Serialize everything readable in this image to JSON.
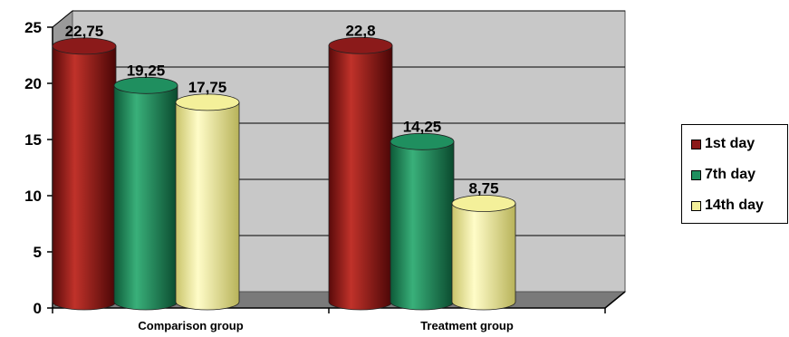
{
  "chart_data": {
    "type": "bar",
    "categories": [
      "Comparison group",
      "Treatment group"
    ],
    "series": [
      {
        "name": "1st day",
        "values": [
          22.75,
          22.8
        ],
        "labels": [
          "22,75",
          "22,8"
        ],
        "color": "#8b1a1a"
      },
      {
        "name": "7th day",
        "values": [
          19.25,
          14.25
        ],
        "labels": [
          "19,25",
          "14,25"
        ],
        "color": "#1f8f5f"
      },
      {
        "name": "14th day",
        "values": [
          17.75,
          8.75
        ],
        "labels": [
          "17,75",
          "8,75"
        ],
        "color": "#f4f09a"
      }
    ],
    "yticks": [
      0,
      5,
      10,
      15,
      20,
      25
    ],
    "ylim": [
      0,
      25
    ],
    "title": "",
    "xlabel": "",
    "ylabel": "",
    "grid": true,
    "legend_position": "right",
    "wall_color": "#c8c8c8"
  }
}
